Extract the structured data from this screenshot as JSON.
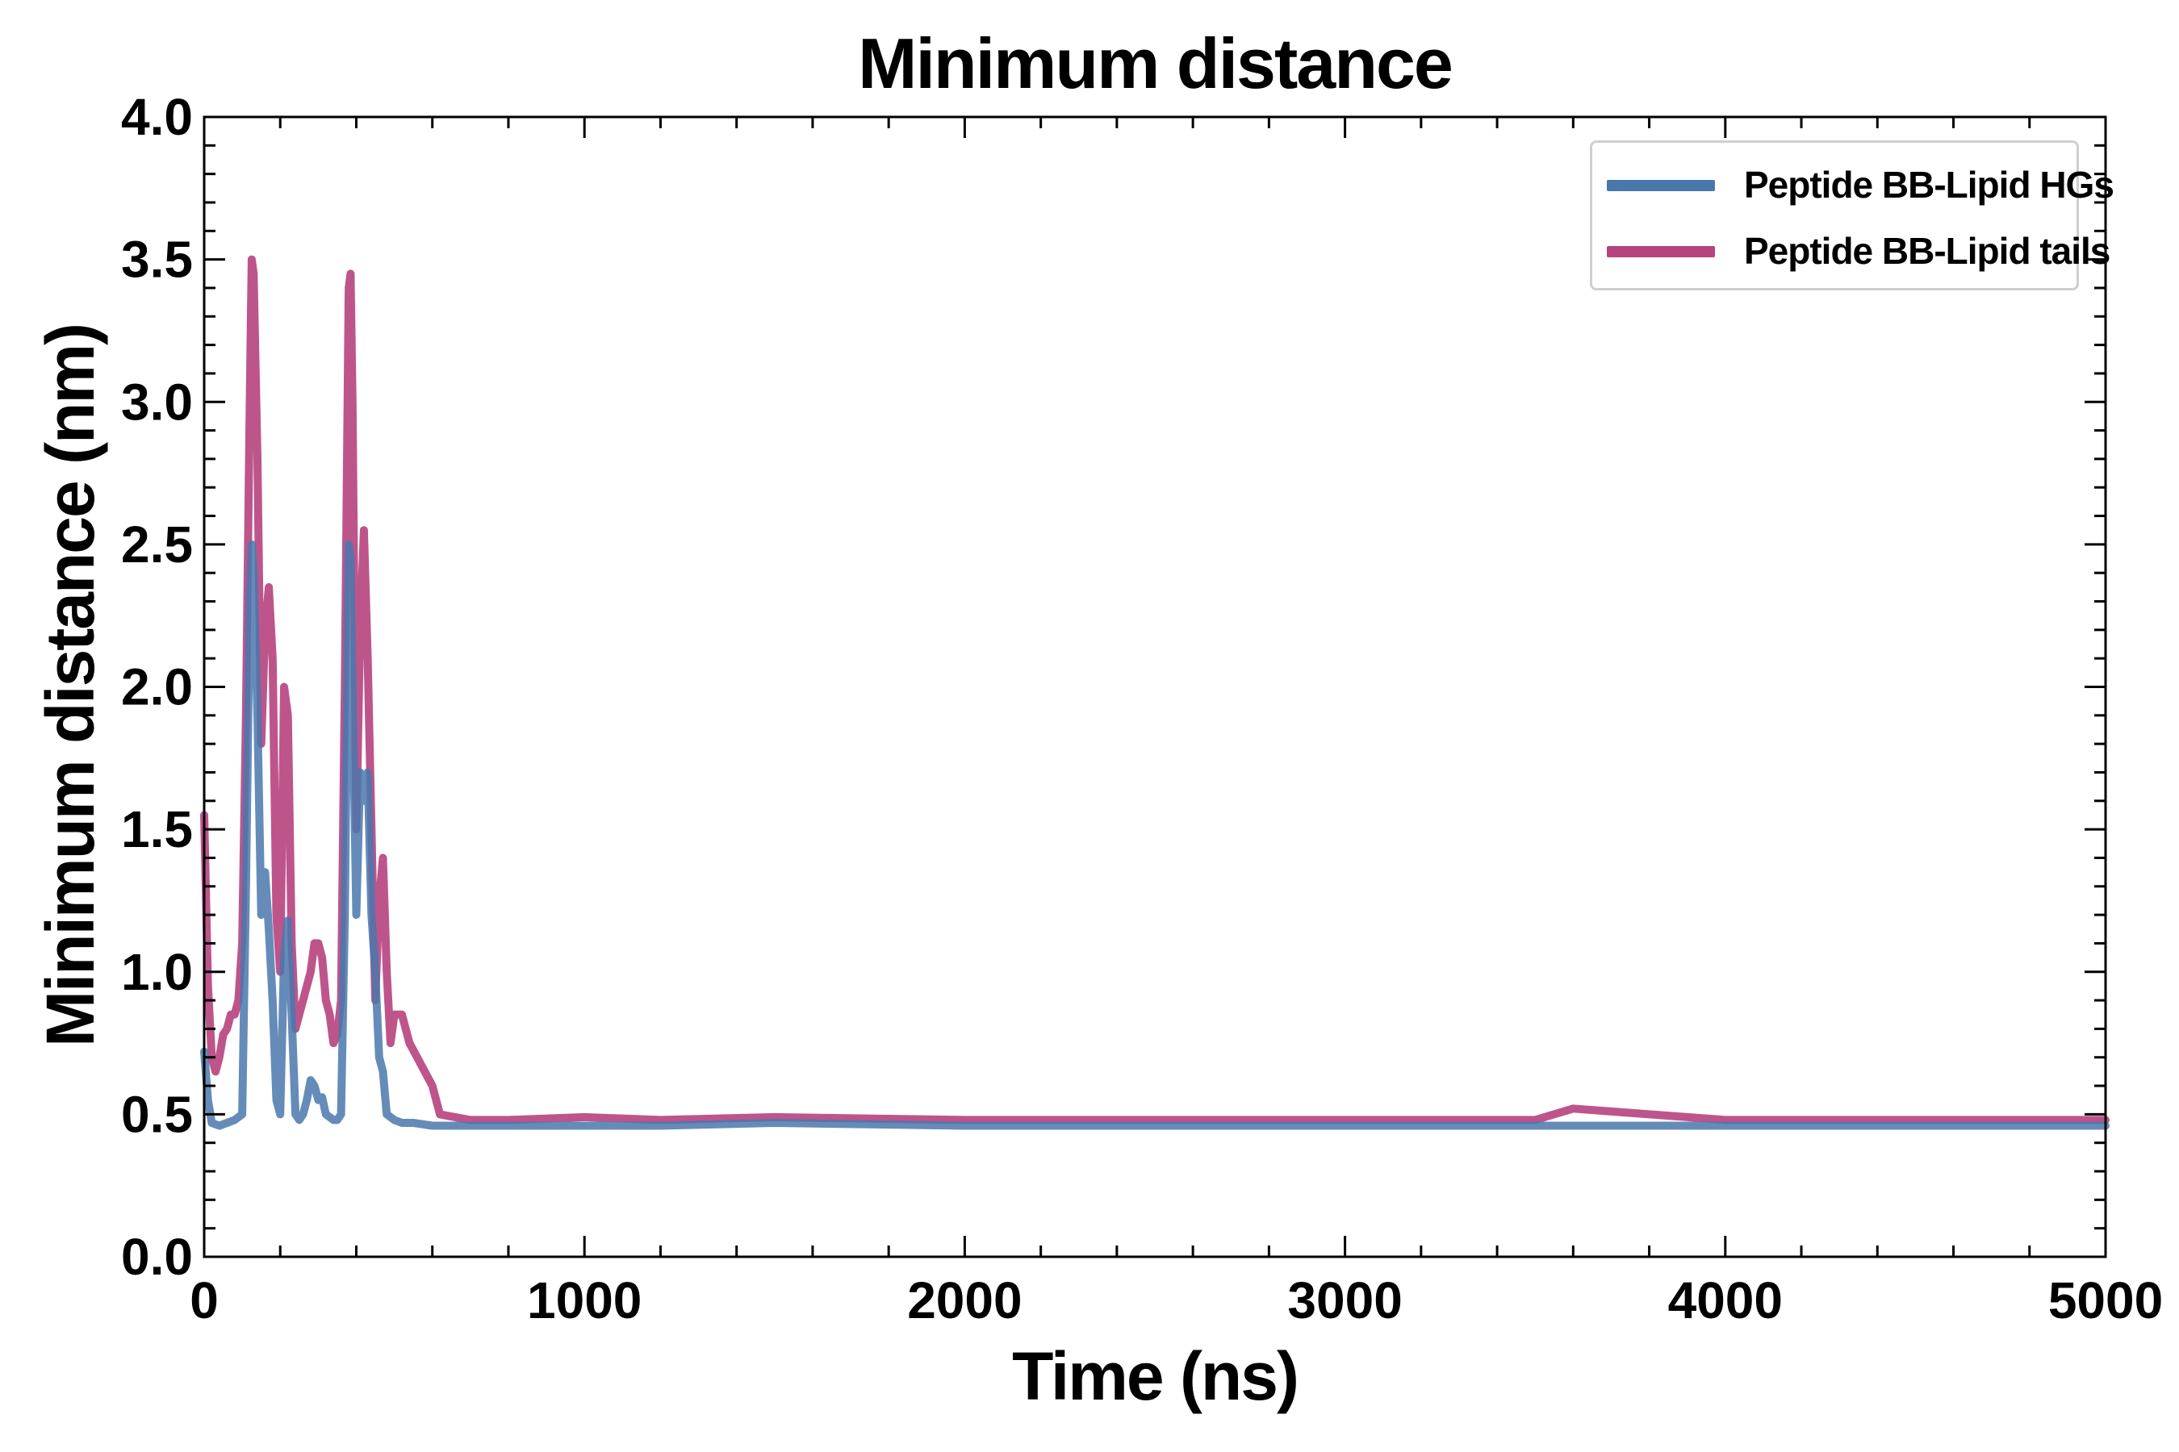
{
  "chart_data": {
    "type": "line",
    "title": "Minimum distance",
    "xlabel": "Time (ns)",
    "ylabel": "Minimum distance (nm)",
    "xlim": [
      0,
      5000
    ],
    "ylim": [
      0,
      4.0
    ],
    "x_ticks": [
      "0",
      "1000",
      "2000",
      "3000",
      "4000",
      "5000"
    ],
    "y_ticks": [
      "0.0",
      "0.5",
      "1.0",
      "1.5",
      "2.0",
      "2.5",
      "3.0",
      "3.5",
      "4.0"
    ],
    "grid": false,
    "legend_position": "top-right",
    "series": [
      {
        "name": "Peptide BB-Lipid HGs",
        "color": "#4a78ad",
        "x": [
          0,
          10,
          20,
          40,
          60,
          80,
          100,
          110,
          120,
          125,
          130,
          140,
          150,
          160,
          170,
          180,
          190,
          200,
          210,
          220,
          230,
          240,
          250,
          260,
          270,
          280,
          290,
          300,
          310,
          320,
          330,
          340,
          350,
          360,
          370,
          380,
          385,
          390,
          400,
          410,
          420,
          430,
          440,
          450,
          460,
          470,
          480,
          490,
          500,
          520,
          550,
          600,
          700,
          800,
          1000,
          1200,
          1500,
          2000,
          2500,
          3000,
          3500,
          4000,
          4500,
          5000
        ],
        "y": [
          0.72,
          0.55,
          0.47,
          0.46,
          0.47,
          0.48,
          0.5,
          1.3,
          2.3,
          2.5,
          2.4,
          1.9,
          1.2,
          1.35,
          1.15,
          0.9,
          0.55,
          0.5,
          1.05,
          1.18,
          0.85,
          0.5,
          0.48,
          0.5,
          0.55,
          0.62,
          0.6,
          0.55,
          0.56,
          0.5,
          0.49,
          0.48,
          0.48,
          0.5,
          1.2,
          2.5,
          2.45,
          2.0,
          1.2,
          1.7,
          1.6,
          1.7,
          1.2,
          1.0,
          0.7,
          0.65,
          0.5,
          0.49,
          0.48,
          0.47,
          0.47,
          0.46,
          0.46,
          0.46,
          0.46,
          0.46,
          0.47,
          0.46,
          0.46,
          0.46,
          0.46,
          0.46,
          0.46,
          0.46
        ]
      },
      {
        "name": "Peptide BB-Lipid tails",
        "color": "#b6437e",
        "x": [
          0,
          10,
          20,
          30,
          40,
          50,
          60,
          70,
          80,
          90,
          100,
          110,
          120,
          125,
          130,
          140,
          150,
          160,
          170,
          180,
          190,
          200,
          210,
          220,
          230,
          240,
          250,
          260,
          270,
          280,
          290,
          300,
          310,
          320,
          330,
          340,
          350,
          360,
          370,
          380,
          385,
          390,
          400,
          410,
          420,
          430,
          440,
          450,
          460,
          470,
          480,
          490,
          500,
          520,
          540,
          560,
          580,
          600,
          620,
          700,
          800,
          1000,
          1200,
          1500,
          2000,
          2500,
          3000,
          3500,
          3600,
          4000,
          4500,
          5000
        ],
        "y": [
          1.55,
          0.95,
          0.7,
          0.65,
          0.7,
          0.78,
          0.8,
          0.85,
          0.85,
          0.9,
          1.1,
          1.9,
          3.0,
          3.5,
          3.45,
          2.8,
          1.8,
          2.2,
          2.35,
          2.1,
          1.2,
          1.0,
          2.0,
          1.9,
          1.1,
          0.8,
          0.85,
          0.9,
          0.95,
          1.0,
          1.1,
          1.1,
          1.05,
          0.9,
          0.85,
          0.75,
          0.78,
          0.9,
          2.0,
          3.4,
          3.45,
          3.0,
          1.5,
          2.2,
          2.55,
          2.1,
          1.5,
          0.9,
          1.25,
          1.4,
          1.0,
          0.75,
          0.85,
          0.85,
          0.75,
          0.7,
          0.65,
          0.6,
          0.5,
          0.48,
          0.48,
          0.49,
          0.48,
          0.49,
          0.48,
          0.48,
          0.48,
          0.48,
          0.52,
          0.48,
          0.48,
          0.48
        ]
      }
    ]
  }
}
